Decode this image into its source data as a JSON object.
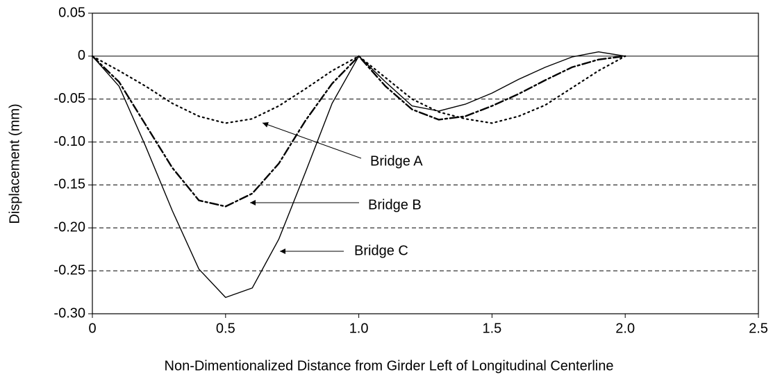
{
  "chart_data": {
    "type": "line",
    "xlabel": "Non-Dimentionalized Distance from Girder Left of Longitudinal Centerline",
    "ylabel": "Displacement (mm)",
    "x": [
      0,
      0.1,
      0.2,
      0.3,
      0.4,
      0.5,
      0.6,
      0.7,
      0.8,
      0.9,
      1.0,
      1.1,
      1.2,
      1.3,
      1.4,
      1.5,
      1.6,
      1.7,
      1.8,
      1.9,
      2.0
    ],
    "series": [
      {
        "name": "Bridge A",
        "color": "#000000",
        "style": "dotted",
        "values": [
          0,
          -0.017,
          -0.035,
          -0.055,
          -0.07,
          -0.078,
          -0.073,
          -0.058,
          -0.038,
          -0.017,
          0,
          -0.025,
          -0.05,
          -0.065,
          -0.073,
          -0.078,
          -0.07,
          -0.057,
          -0.037,
          -0.017,
          0
        ]
      },
      {
        "name": "Bridge B",
        "color": "#000000",
        "style": "dash-dot",
        "values": [
          0,
          -0.03,
          -0.08,
          -0.13,
          -0.168,
          -0.175,
          -0.16,
          -0.125,
          -0.075,
          -0.032,
          0,
          -0.035,
          -0.062,
          -0.074,
          -0.07,
          -0.058,
          -0.044,
          -0.028,
          -0.013,
          -0.004,
          0
        ]
      },
      {
        "name": "Bridge C",
        "color": "#000000",
        "style": "solid",
        "values": [
          0,
          -0.035,
          -0.105,
          -0.18,
          -0.248,
          -0.281,
          -0.27,
          -0.213,
          -0.135,
          -0.055,
          0,
          -0.03,
          -0.058,
          -0.064,
          -0.056,
          -0.043,
          -0.027,
          -0.013,
          -0.001,
          0.005,
          0
        ]
      }
    ],
    "xlim": [
      0,
      2.5
    ],
    "xticks": [
      0,
      0.5,
      {
        "value": 1,
        "label": "1.0"
      },
      1.5,
      {
        "value": 2,
        "label": "2.0"
      },
      2.5
    ],
    "ylim": [
      -0.3,
      0.05
    ],
    "yticks": [
      {
        "value": -0.3,
        "label": "-0.30"
      },
      -0.25,
      {
        "value": -0.2,
        "label": "-0.20"
      },
      -0.15,
      {
        "value": -0.1,
        "label": "-0.10"
      },
      -0.05,
      0,
      0.05
    ],
    "grid": true
  }
}
